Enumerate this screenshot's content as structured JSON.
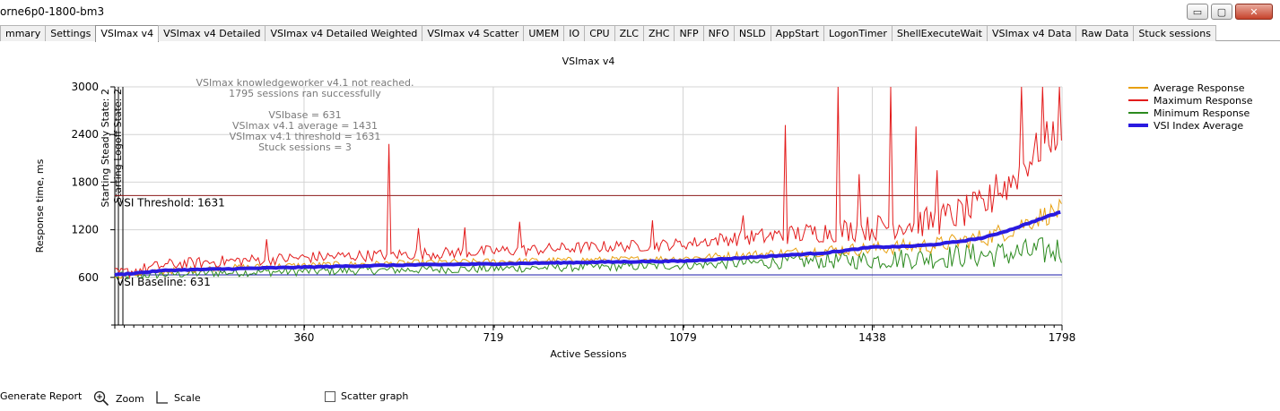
{
  "window": {
    "title": "orne6p0-1800-bm3"
  },
  "window_buttons": {
    "minimize": "▭",
    "maximize": "▢",
    "close": "✕"
  },
  "tabs": [
    {
      "label": "mmary"
    },
    {
      "label": "Settings"
    },
    {
      "label": "VSImax v4",
      "active": true
    },
    {
      "label": "VSImax v4 Detailed"
    },
    {
      "label": "VSImax v4 Detailed Weighted"
    },
    {
      "label": "VSImax v4 Scatter"
    },
    {
      "label": "UMEM"
    },
    {
      "label": "IO"
    },
    {
      "label": "CPU"
    },
    {
      "label": "ZLC"
    },
    {
      "label": "ZHC"
    },
    {
      "label": "NFP"
    },
    {
      "label": "NFO"
    },
    {
      "label": "NSLD"
    },
    {
      "label": "AppStart"
    },
    {
      "label": "LogonTimer"
    },
    {
      "label": "ShellExecuteWait"
    },
    {
      "label": "VSImax v4 Data"
    },
    {
      "label": "Raw Data"
    },
    {
      "label": "Stuck sessions"
    }
  ],
  "annotations": {
    "not_reached": "VSImax knowledgeworker v4.1 not reached.",
    "sessions_ok": "1795 sessions ran successfully",
    "vsibase": "VSIbase = 631",
    "vsimax_avg": "VSImax v4.1 average = 1431",
    "vsimax_threshold": "VSImax v4.1 threshold = 1631",
    "stuck": "Stuck sessions = 3",
    "steady_state": "Starting Steady State: 2",
    "logoff_state": "Starting Logoff State: 2",
    "threshold_label": "VSI Threshold: 1631",
    "baseline_label": "VSI Baseline: 631"
  },
  "chart_data": {
    "type": "line",
    "title": "VSImax v4",
    "xlabel": "Active Sessions",
    "ylabel": "Response time, ms",
    "xlim": [
      1,
      1798
    ],
    "ylim": [
      0,
      3000
    ],
    "x_ticks": [
      360,
      719,
      1079,
      1438,
      1798
    ],
    "y_ticks": [
      600,
      1200,
      1800,
      2400,
      3000
    ],
    "grid": true,
    "legend_position": "top-right",
    "threshold": 1631,
    "baseline": 631,
    "series": [
      {
        "name": "Average Response",
        "color": "#e8a010",
        "x": [
          1,
          100,
          200,
          300,
          400,
          500,
          600,
          719,
          800,
          900,
          1000,
          1079,
          1150,
          1250,
          1350,
          1438,
          1500,
          1550,
          1600,
          1650,
          1700,
          1750,
          1798
        ],
        "y": [
          620,
          680,
          720,
          740,
          760,
          770,
          790,
          800,
          810,
          820,
          830,
          840,
          870,
          900,
          940,
          960,
          990,
          1000,
          1050,
          1100,
          1200,
          1350,
          1450
        ]
      },
      {
        "name": "Maximum Response",
        "color": "#e31b1b",
        "x": [
          1,
          100,
          200,
          300,
          400,
          500,
          600,
          719,
          800,
          900,
          1000,
          1079,
          1150,
          1250,
          1350,
          1438,
          1500,
          1550,
          1600,
          1650,
          1700,
          1750,
          1798
        ],
        "y": [
          640,
          760,
          800,
          830,
          860,
          880,
          900,
          930,
          950,
          980,
          1000,
          1020,
          1080,
          1120,
          1180,
          1220,
          1280,
          1300,
          1400,
          1500,
          1800,
          2200,
          2500
        ],
        "spikes": [
          {
            "x": 287,
            "y": 1080
          },
          {
            "x": 520,
            "y": 2280
          },
          {
            "x": 575,
            "y": 1220
          },
          {
            "x": 665,
            "y": 1230
          },
          {
            "x": 767,
            "y": 1300
          },
          {
            "x": 1020,
            "y": 1320
          },
          {
            "x": 1190,
            "y": 1380
          },
          {
            "x": 1273,
            "y": 2520
          },
          {
            "x": 1370,
            "y": 3000
          },
          {
            "x": 1410,
            "y": 1900
          },
          {
            "x": 1470,
            "y": 3000
          },
          {
            "x": 1520,
            "y": 2500
          },
          {
            "x": 1560,
            "y": 1950
          },
          {
            "x": 1670,
            "y": 1900
          },
          {
            "x": 1720,
            "y": 3000
          },
          {
            "x": 1760,
            "y": 3000
          },
          {
            "x": 1790,
            "y": 3000
          }
        ]
      },
      {
        "name": "Minimum Response",
        "color": "#2b8a1e",
        "x": [
          1,
          100,
          200,
          300,
          400,
          500,
          600,
          719,
          800,
          900,
          1000,
          1079,
          1150,
          1250,
          1350,
          1438,
          1500,
          1550,
          1600,
          1650,
          1700,
          1750,
          1798
        ],
        "y": [
          610,
          640,
          660,
          670,
          680,
          690,
          700,
          710,
          720,
          730,
          740,
          750,
          770,
          790,
          810,
          820,
          840,
          850,
          870,
          880,
          900,
          920,
          950
        ]
      },
      {
        "name": "VSI Index Average",
        "color": "#2a1ae0",
        "x": [
          1,
          100,
          200,
          300,
          400,
          500,
          600,
          719,
          800,
          900,
          1000,
          1079,
          1150,
          1250,
          1350,
          1438,
          1500,
          1550,
          1600,
          1650,
          1700,
          1750,
          1798
        ],
        "y": [
          631,
          690,
          705,
          720,
          735,
          750,
          760,
          770,
          780,
          790,
          800,
          805,
          830,
          870,
          910,
          980,
          990,
          1010,
          1050,
          1100,
          1200,
          1320,
          1431
        ]
      }
    ]
  },
  "footer": {
    "generate_report": "Generate Report",
    "zoom": "Zoom",
    "scale": "Scale",
    "scatter_graph": "Scatter graph",
    "zoom_icon": "magnifier-plus-icon",
    "scale_icon": "axis-corner-icon"
  }
}
